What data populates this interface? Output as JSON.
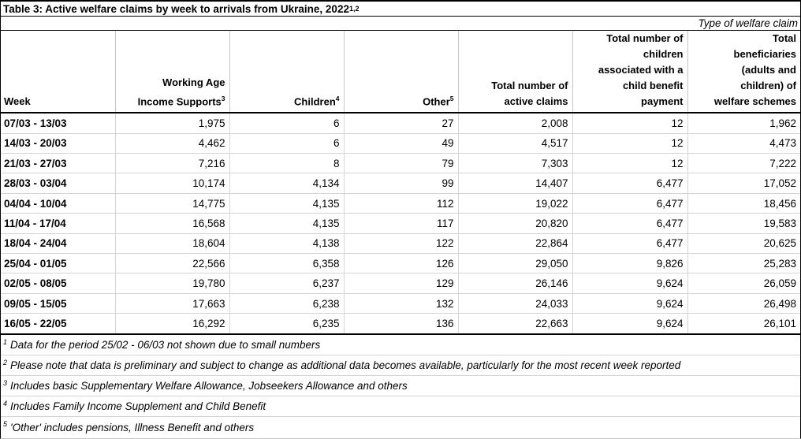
{
  "title": {
    "text": "Table 3: Active welfare claims by week to arrivals from Ukraine, 2022",
    "superscript": "1,2"
  },
  "type_row_label": "Type of welfare claim",
  "colors": {
    "text": "#000000",
    "background": "#ffffff",
    "strong_border": "#000000",
    "grid_line": "#d4d4d4"
  },
  "table": {
    "columns": [
      {
        "id": "week",
        "lines": [
          "Week"
        ],
        "sup": ""
      },
      {
        "id": "working-age-income-supports",
        "lines": [
          "Working Age",
          "Income Supports"
        ],
        "sup": "3"
      },
      {
        "id": "children",
        "lines": [
          "Children"
        ],
        "sup": "4"
      },
      {
        "id": "other",
        "lines": [
          "Other"
        ],
        "sup": "5"
      },
      {
        "id": "total-active-claims",
        "lines": [
          "Total number of",
          "active claims"
        ],
        "sup": ""
      },
      {
        "id": "children-child-benefit",
        "lines": [
          "Total number of",
          "children",
          "associated with a",
          "child benefit",
          "payment"
        ],
        "sup": ""
      },
      {
        "id": "total-beneficiaries",
        "lines": [
          "Total",
          "beneficiaries",
          "(adults and",
          "children) of",
          "welfare schemes"
        ],
        "sup": ""
      }
    ],
    "rows": [
      {
        "week": "07/03 - 13/03",
        "values": [
          "1,975",
          "6",
          "27",
          "2,008",
          "12",
          "1,962"
        ]
      },
      {
        "week": "14/03 - 20/03",
        "values": [
          "4,462",
          "6",
          "49",
          "4,517",
          "12",
          "4,473"
        ]
      },
      {
        "week": "21/03 - 27/03",
        "values": [
          "7,216",
          "8",
          "79",
          "7,303",
          "12",
          "7,222"
        ]
      },
      {
        "week": "28/03 - 03/04",
        "values": [
          "10,174",
          "4,134",
          "99",
          "14,407",
          "6,477",
          "17,052"
        ]
      },
      {
        "week": "04/04 - 10/04",
        "values": [
          "14,775",
          "4,135",
          "112",
          "19,022",
          "6,477",
          "18,456"
        ]
      },
      {
        "week": "11/04 - 17/04",
        "values": [
          "16,568",
          "4,135",
          "117",
          "20,820",
          "6,477",
          "19,583"
        ]
      },
      {
        "week": "18/04 - 24/04",
        "values": [
          "18,604",
          "4,138",
          "122",
          "22,864",
          "6,477",
          "20,625"
        ]
      },
      {
        "week": "25/04 - 01/05",
        "values": [
          "22,566",
          "6,358",
          "126",
          "29,050",
          "9,826",
          "25,283"
        ]
      },
      {
        "week": "02/05 - 08/05",
        "values": [
          "19,780",
          "6,237",
          "129",
          "26,146",
          "9,624",
          "26,059"
        ]
      },
      {
        "week": "09/05 - 15/05",
        "values": [
          "17,663",
          "6,238",
          "132",
          "24,033",
          "9,624",
          "26,498"
        ]
      },
      {
        "week": "16/05 - 22/05",
        "values": [
          "16,292",
          "6,235",
          "136",
          "22,663",
          "9,624",
          "26,101"
        ]
      }
    ]
  },
  "footnotes": [
    {
      "sup": "1",
      "text": "Data for the period 25/02 - 06/03 not shown due to small numbers"
    },
    {
      "sup": "2",
      "text": "Please note that data is preliminary and subject to change as additional data becomes available, particularly for the most recent week reported"
    },
    {
      "sup": "3",
      "text": "Includes basic Supplementary Welfare Allowance, Jobseekers Allowance and others"
    },
    {
      "sup": "4",
      "text": "Includes Family Income Supplement and Child Benefit"
    },
    {
      "sup": "5",
      "text": "'Other' includes pensions, Illness Benefit and others"
    }
  ]
}
